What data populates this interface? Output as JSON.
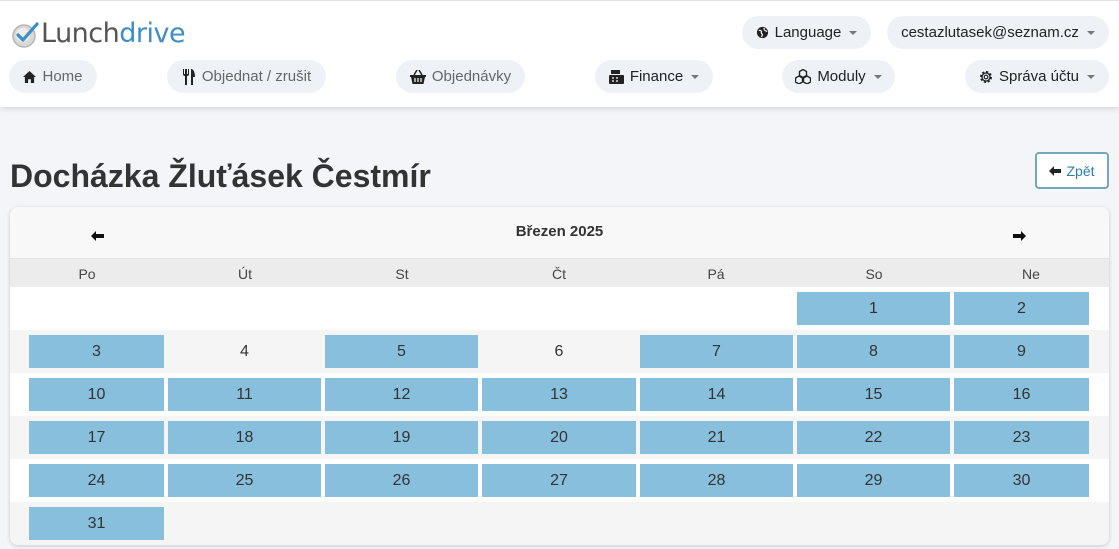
{
  "brand": {
    "text_a": "Lunch",
    "text_b": "drive"
  },
  "topbar": {
    "language_label": "Language",
    "account_email": "cestazlutasek@seznam.cz"
  },
  "nav": {
    "home": "Home",
    "order": "Objednat / zrušit",
    "orders": "Objednávky",
    "finance": "Finance",
    "modules": "Moduly",
    "account": "Správa účtu"
  },
  "page": {
    "title": "Docházka Žluťásek Čestmír",
    "back_label": "Zpět"
  },
  "calendar": {
    "month_label": "Březen 2025",
    "weekdays": [
      "Po",
      "Út",
      "St",
      "Čt",
      "Pá",
      "So",
      "Ne"
    ],
    "first_weekday_index": 5,
    "days_in_month": 31,
    "unmarked_days": [
      4,
      6
    ],
    "marked_color": "#87bfdc"
  },
  "colors": {
    "accent": "#3c8ec9",
    "header_bg": "#ffffff",
    "pill_bg": "#eef2f6"
  }
}
